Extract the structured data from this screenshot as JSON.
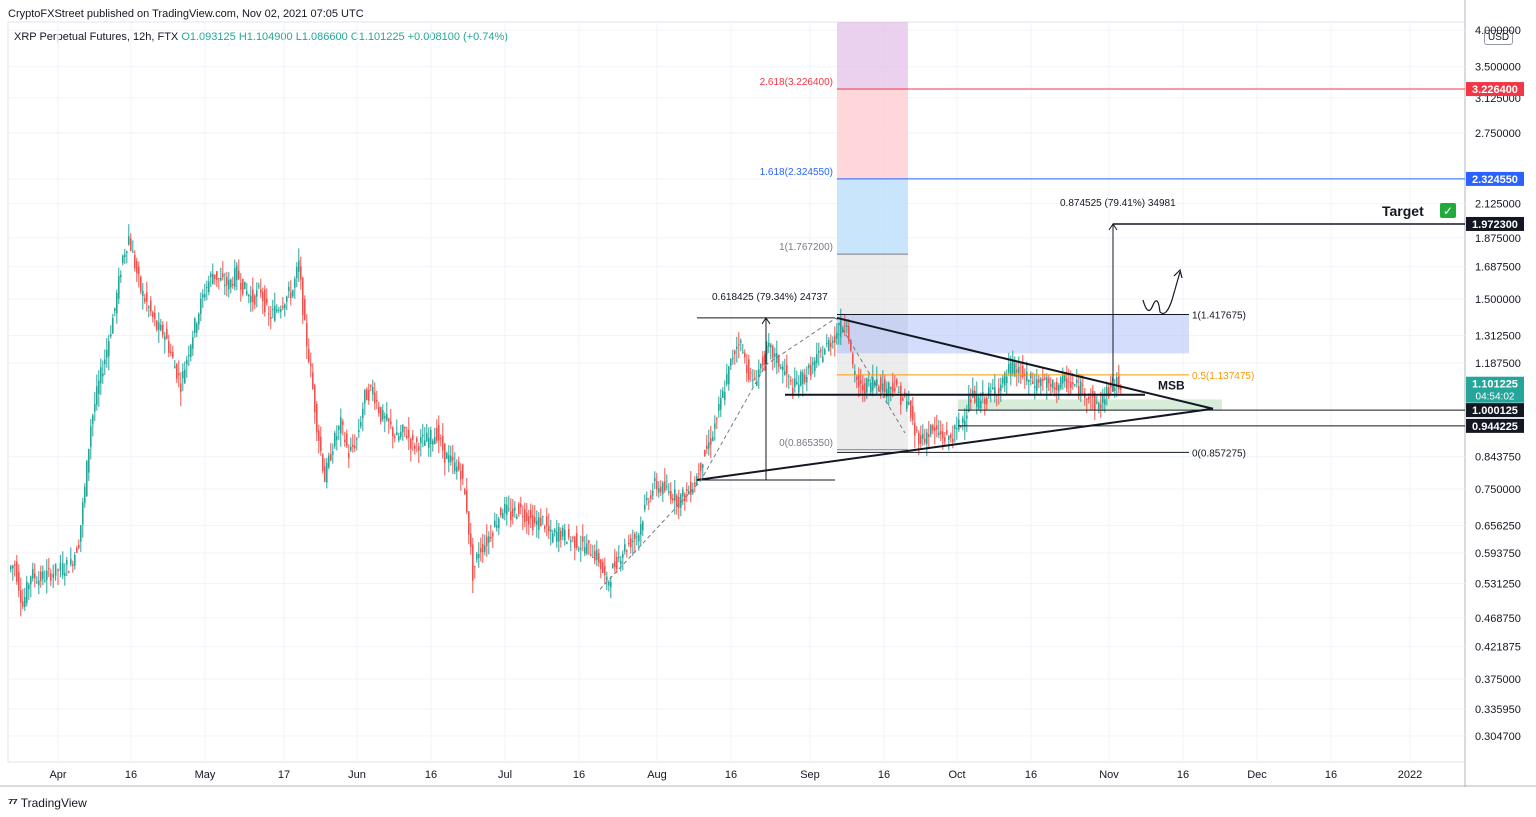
{
  "header": {
    "published": "CryptoFXStreet published on TradingView.com, Nov 02, 2021 07:05 UTC"
  },
  "symbol": {
    "name": "XRP Perpetual Futures, 12h, FTX",
    "ohlc": "O1.093125  H1.104900  L1.086600  C1.101225  +0.008100 (+0.74%)"
  },
  "currency": "USD",
  "footer": {
    "brand": "TradingView"
  },
  "colors": {
    "up": "#26a69a",
    "down": "#ef5350",
    "grid": "#f0f3fa",
    "fib_red": "#f23645",
    "fib_blue": "#2962ff",
    "fib_orange": "#ff9800"
  },
  "chart_data": {
    "type": "candlestick",
    "title": "XRP Perpetual Futures, 12h, FTX",
    "scale": "log",
    "ylim": [
      0.27,
      4.0
    ],
    "y_ticks": [
      "4.000000",
      "3.500000",
      "3.125000",
      "2.750000",
      "2.325000",
      "2.125000",
      "1.875000",
      "1.687500",
      "1.500000",
      "1.312500",
      "1.187500",
      "0.843750",
      "0.750000",
      "0.656250",
      "0.593750",
      "0.531250",
      "0.468750",
      "0.421875",
      "0.375000",
      "0.335950",
      "0.304700"
    ],
    "x_ticks": [
      "Apr",
      "16",
      "May",
      "17",
      "Jun",
      "16",
      "Jul",
      "16",
      "Aug",
      "16",
      "Sep",
      "16",
      "Oct",
      "16",
      "Nov",
      "16",
      "Dec",
      "16",
      "2022"
    ],
    "price_labels": [
      {
        "text": "3.226400",
        "value": 3.2264,
        "bg": "#f23645",
        "fg": "#ffffff"
      },
      {
        "text": "2.324550",
        "value": 2.32455,
        "bg": "#2962ff",
        "fg": "#ffffff"
      },
      {
        "text": "1.972300",
        "value": 1.9723,
        "bg": "#131722",
        "fg": "#ffffff"
      },
      {
        "text": "1.101225",
        "value": 1.101225,
        "bg": "#26a69a",
        "fg": "#ffffff",
        "sub": "04:54:02"
      },
      {
        "text": "1.000125",
        "value": 1.000125,
        "bg": "#131722",
        "fg": "#ffffff"
      },
      {
        "text": "0.944225",
        "value": 0.944225,
        "bg": "#131722",
        "fg": "#ffffff"
      }
    ],
    "fib_levels": [
      {
        "label": "2.618(3.226400)",
        "value": 3.2264,
        "color": "#f23645"
      },
      {
        "label": "1.618(2.324550)",
        "value": 2.32455,
        "color": "#2962ff"
      },
      {
        "label": "1(1.767200)",
        "value": 1.7672,
        "color": "#787b86"
      },
      {
        "label": "0(0.865350)",
        "value": 0.86535,
        "color": "#787b86"
      }
    ],
    "fib_right": [
      {
        "label": "1(1.417675)",
        "value": 1.417675,
        "color": "#131722"
      },
      {
        "label": "0.5(1.137475)",
        "value": 1.137475,
        "color": "#ff9800"
      },
      {
        "label": "0(0.857275)",
        "value": 0.857275,
        "color": "#131722"
      }
    ],
    "annotations": {
      "measure1": "0.618425 (79.34%) 24737",
      "measure2": "0.874525 (79.41%) 34981",
      "msb": "MSB",
      "target": "Target",
      "target_check": "✓"
    },
    "candles_path": [
      [
        0,
        0.56
      ],
      [
        6,
        0.57
      ],
      [
        14,
        0.49
      ],
      [
        22,
        0.55
      ],
      [
        30,
        0.54
      ],
      [
        40,
        0.55
      ],
      [
        52,
        0.56
      ],
      [
        62,
        0.57
      ],
      [
        70,
        0.62
      ],
      [
        76,
        0.75
      ],
      [
        82,
        0.95
      ],
      [
        90,
        1.1
      ],
      [
        98,
        1.25
      ],
      [
        106,
        1.45
      ],
      [
        114,
        1.75
      ],
      [
        120,
        1.88
      ],
      [
        126,
        1.7
      ],
      [
        132,
        1.55
      ],
      [
        140,
        1.45
      ],
      [
        148,
        1.35
      ],
      [
        156,
        1.32
      ],
      [
        164,
        1.2
      ],
      [
        172,
        1.1
      ],
      [
        180,
        1.25
      ],
      [
        188,
        1.4
      ],
      [
        196,
        1.55
      ],
      [
        204,
        1.65
      ],
      [
        212,
        1.6
      ],
      [
        220,
        1.58
      ],
      [
        228,
        1.65
      ],
      [
        236,
        1.55
      ],
      [
        244,
        1.5
      ],
      [
        252,
        1.55
      ],
      [
        260,
        1.4
      ],
      [
        268,
        1.45
      ],
      [
        276,
        1.5
      ],
      [
        284,
        1.55
      ],
      [
        290,
        1.7
      ],
      [
        296,
        1.35
      ],
      [
        302,
        1.15
      ],
      [
        308,
        0.95
      ],
      [
        316,
        0.78
      ],
      [
        324,
        0.88
      ],
      [
        332,
        0.95
      ],
      [
        340,
        0.85
      ],
      [
        348,
        0.9
      ],
      [
        356,
        1.05
      ],
      [
        364,
        1.08
      ],
      [
        372,
        0.98
      ],
      [
        380,
        0.95
      ],
      [
        388,
        0.9
      ],
      [
        396,
        0.93
      ],
      [
        404,
        0.88
      ],
      [
        412,
        0.89
      ],
      [
        420,
        0.9
      ],
      [
        428,
        0.92
      ],
      [
        436,
        0.85
      ],
      [
        444,
        0.82
      ],
      [
        452,
        0.8
      ],
      [
        458,
        0.7
      ],
      [
        464,
        0.55
      ],
      [
        470,
        0.6
      ],
      [
        478,
        0.62
      ],
      [
        486,
        0.66
      ],
      [
        494,
        0.7
      ],
      [
        502,
        0.68
      ],
      [
        510,
        0.7
      ],
      [
        518,
        0.68
      ],
      [
        526,
        0.66
      ],
      [
        534,
        0.67
      ],
      [
        542,
        0.63
      ],
      [
        550,
        0.64
      ],
      [
        558,
        0.63
      ],
      [
        566,
        0.62
      ],
      [
        574,
        0.61
      ],
      [
        582,
        0.6
      ],
      [
        590,
        0.58
      ],
      [
        598,
        0.53
      ],
      [
        606,
        0.57
      ],
      [
        614,
        0.6
      ],
      [
        622,
        0.62
      ],
      [
        630,
        0.64
      ],
      [
        638,
        0.72
      ],
      [
        646,
        0.76
      ],
      [
        654,
        0.75
      ],
      [
        662,
        0.74
      ],
      [
        670,
        0.72
      ],
      [
        678,
        0.74
      ],
      [
        686,
        0.77
      ],
      [
        694,
        0.84
      ],
      [
        702,
        0.9
      ],
      [
        710,
        1.0
      ],
      [
        718,
        1.12
      ],
      [
        724,
        1.22
      ],
      [
        730,
        1.3
      ],
      [
        736,
        1.2
      ],
      [
        744,
        1.1
      ],
      [
        752,
        1.18
      ],
      [
        760,
        1.25
      ],
      [
        768,
        1.2
      ],
      [
        776,
        1.15
      ],
      [
        784,
        1.08
      ],
      [
        792,
        1.12
      ],
      [
        800,
        1.15
      ],
      [
        808,
        1.2
      ],
      [
        816,
        1.25
      ],
      [
        824,
        1.3
      ],
      [
        832,
        1.35
      ],
      [
        838,
        1.4
      ],
      [
        844,
        1.15
      ],
      [
        852,
        1.08
      ],
      [
        860,
        1.1
      ],
      [
        868,
        1.12
      ],
      [
        876,
        1.08
      ],
      [
        884,
        1.1
      ],
      [
        892,
        1.05
      ],
      [
        900,
        1.02
      ],
      [
        906,
        0.92
      ],
      [
        914,
        0.9
      ],
      [
        922,
        0.93
      ],
      [
        930,
        0.92
      ],
      [
        938,
        0.9
      ],
      [
        946,
        0.92
      ],
      [
        954,
        0.97
      ],
      [
        962,
        1.05
      ],
      [
        970,
        1.03
      ],
      [
        978,
        1.05
      ],
      [
        986,
        1.08
      ],
      [
        994,
        1.1
      ],
      [
        1002,
        1.17
      ],
      [
        1010,
        1.15
      ],
      [
        1018,
        1.12
      ],
      [
        1026,
        1.1
      ],
      [
        1034,
        1.12
      ],
      [
        1042,
        1.08
      ],
      [
        1050,
        1.1
      ],
      [
        1058,
        1.11
      ],
      [
        1066,
        1.09
      ],
      [
        1074,
        1.08
      ],
      [
        1082,
        1.05
      ],
      [
        1088,
        1.01
      ],
      [
        1094,
        1.04
      ],
      [
        1100,
        1.08
      ],
      [
        1106,
        1.1
      ],
      [
        1112,
        1.1
      ]
    ]
  }
}
